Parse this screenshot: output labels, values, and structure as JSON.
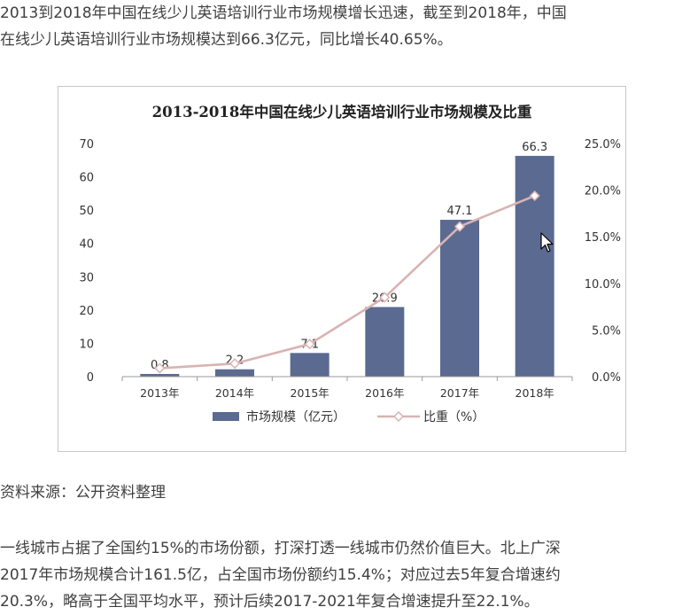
{
  "article": {
    "intro": "2013到2018年中国在线少儿英语培训行业市场规模增长迅速，截至到2018年，中国\n在线少儿英语培训行业市场规模达到66.3亿元，同比增长40.65%。",
    "source": "资料来源：公开资料整理",
    "outro": "一线城市占据了全国约15%的市场份额，打深打透一线城市仍然价值巨大。北上广深\n2017年市场规模合计161.5亿，占全国市场份额约15.4%；对应过去5年复合增速约\n20.3%，略高于全国平均水平，预计后续2017-2021年复合增速提升至22.1%。"
  },
  "colors": {
    "bar": "#5b6a91",
    "line": "#d9b3b3",
    "marker_fill": "#ffffff",
    "axis_text": "#333333",
    "frame": "#c8c8c8"
  },
  "chart_data": {
    "type": "bar",
    "title": "2013-2018年中国在线少儿英语培训行业市场规模及比重",
    "categories": [
      "2013年",
      "2014年",
      "2015年",
      "2016年",
      "2017年",
      "2018年"
    ],
    "series": [
      {
        "name": "市场规模（亿元）",
        "type": "bar",
        "axis": "left",
        "values": [
          0.8,
          2.2,
          7.1,
          20.9,
          47.1,
          66.3
        ],
        "labels": [
          "0.8",
          "2.2",
          "7.1",
          "20.9",
          "47.1",
          "66.3"
        ]
      },
      {
        "name": "比重（%）",
        "type": "line",
        "axis": "right",
        "values": [
          0.9,
          1.4,
          3.5,
          8.5,
          16.1,
          19.4
        ]
      }
    ],
    "y_left": {
      "range": [
        0,
        70
      ],
      "ticks": [
        0,
        10,
        20,
        30,
        40,
        50,
        60,
        70
      ],
      "tick_labels": [
        "0",
        "10",
        "20",
        "30",
        "40",
        "50",
        "60",
        "70"
      ]
    },
    "y_right": {
      "range": [
        0,
        25
      ],
      "ticks": [
        0,
        5,
        10,
        15,
        20,
        25
      ],
      "tick_labels": [
        "0.0%",
        "5.0%",
        "10.0%",
        "15.0%",
        "20.0%",
        "25.0%"
      ]
    },
    "grid": false,
    "legend_position": "bottom"
  }
}
